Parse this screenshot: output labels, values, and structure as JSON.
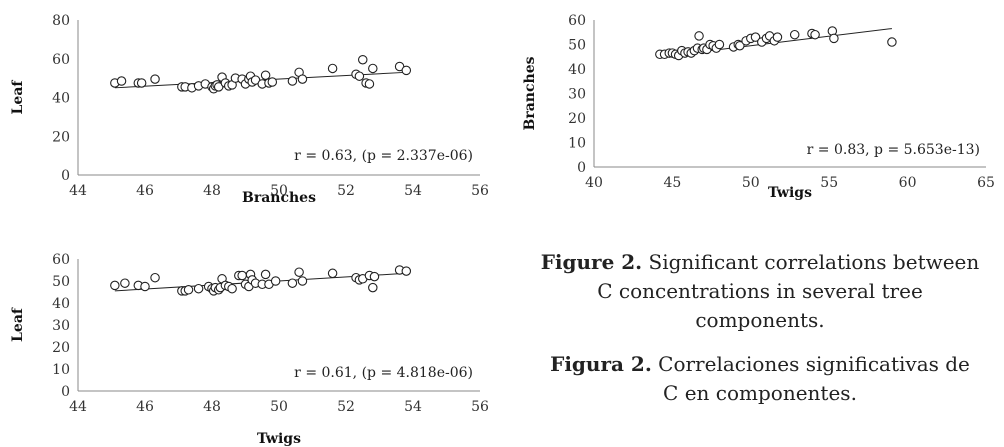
{
  "chart_data": [
    {
      "type": "scatter",
      "xlabel": "Branches",
      "ylabel": "Leaf",
      "xlim": [
        44,
        56
      ],
      "ylim": [
        0,
        80
      ],
      "xticks": [
        44,
        46,
        48,
        50,
        52,
        54,
        56
      ],
      "yticks": [
        0,
        20,
        40,
        60,
        80
      ],
      "annotation": "r = 0.63, (p = 2.337e-06)",
      "trend_line": true,
      "trend": {
        "x": [
          45.1,
          53.8
        ],
        "y": [
          45.0,
          53.0
        ]
      },
      "points": [
        [
          45.1,
          47.5
        ],
        [
          45.3,
          48.5
        ],
        [
          45.8,
          47.5
        ],
        [
          45.9,
          47.5
        ],
        [
          46.3,
          49.5
        ],
        [
          47.1,
          45.5
        ],
        [
          47.2,
          45.5
        ],
        [
          47.4,
          45.0
        ],
        [
          47.6,
          46.0
        ],
        [
          47.8,
          47.0
        ],
        [
          48.0,
          45.5
        ],
        [
          48.05,
          44.5
        ],
        [
          48.1,
          46.0
        ],
        [
          48.15,
          46.5
        ],
        [
          48.2,
          45.5
        ],
        [
          48.3,
          50.5
        ],
        [
          48.4,
          47.5
        ],
        [
          48.5,
          46.0
        ],
        [
          48.6,
          46.5
        ],
        [
          48.7,
          50.0
        ],
        [
          48.9,
          49.5
        ],
        [
          49.0,
          47.0
        ],
        [
          49.1,
          49.5
        ],
        [
          49.15,
          51.0
        ],
        [
          49.2,
          48.0
        ],
        [
          49.3,
          49.0
        ],
        [
          49.5,
          47.0
        ],
        [
          49.6,
          51.5
        ],
        [
          49.7,
          47.5
        ],
        [
          49.8,
          48.0
        ],
        [
          50.4,
          48.5
        ],
        [
          50.6,
          53.0
        ],
        [
          50.7,
          49.5
        ],
        [
          51.6,
          55.0
        ],
        [
          52.3,
          52.0
        ],
        [
          52.4,
          51.0
        ],
        [
          52.5,
          59.5
        ],
        [
          52.6,
          47.5
        ],
        [
          52.7,
          47.0
        ],
        [
          52.8,
          55.0
        ],
        [
          53.6,
          56.0
        ],
        [
          53.8,
          54.0
        ]
      ]
    },
    {
      "type": "scatter",
      "xlabel": "Twigs",
      "ylabel": "Branches",
      "xlim": [
        40,
        65
      ],
      "ylim": [
        0,
        60
      ],
      "xticks": [
        40,
        45,
        50,
        55,
        60,
        65
      ],
      "yticks": [
        0,
        10,
        20,
        30,
        40,
        50,
        60
      ],
      "annotation": "r = 0.83, p = 5.653e-13)",
      "trend_line": true,
      "trend": {
        "x": [
          44.2,
          59.0
        ],
        "y": [
          45.0,
          56.5
        ]
      },
      "points": [
        [
          44.2,
          46.0
        ],
        [
          44.5,
          46.0
        ],
        [
          44.8,
          46.5
        ],
        [
          45.0,
          46.5
        ],
        [
          45.2,
          46.0
        ],
        [
          45.4,
          45.5
        ],
        [
          45.6,
          47.5
        ],
        [
          45.8,
          46.5
        ],
        [
          46.0,
          47.0
        ],
        [
          46.2,
          46.5
        ],
        [
          46.4,
          47.5
        ],
        [
          46.6,
          48.5
        ],
        [
          46.7,
          53.5
        ],
        [
          46.9,
          48.0
        ],
        [
          47.0,
          48.5
        ],
        [
          47.2,
          48.0
        ],
        [
          47.4,
          50.0
        ],
        [
          47.6,
          49.5
        ],
        [
          47.8,
          48.5
        ],
        [
          48.0,
          50.0
        ],
        [
          48.9,
          49.0
        ],
        [
          49.2,
          50.0
        ],
        [
          49.3,
          49.5
        ],
        [
          49.7,
          51.5
        ],
        [
          50.0,
          52.5
        ],
        [
          50.3,
          53.0
        ],
        [
          50.7,
          51.0
        ],
        [
          51.0,
          52.5
        ],
        [
          51.2,
          53.5
        ],
        [
          51.5,
          51.5
        ],
        [
          51.7,
          53.0
        ],
        [
          52.8,
          54.0
        ],
        [
          53.9,
          54.5
        ],
        [
          54.1,
          54.0
        ],
        [
          55.2,
          55.5
        ],
        [
          55.3,
          52.5
        ],
        [
          59.0,
          51.0
        ]
      ]
    },
    {
      "type": "scatter",
      "xlabel": "Twigs",
      "ylabel": "Leaf",
      "xlim": [
        44,
        56
      ],
      "ylim": [
        0,
        60
      ],
      "xticks": [
        44,
        46,
        48,
        50,
        52,
        54,
        56
      ],
      "yticks": [
        0,
        10,
        20,
        30,
        40,
        50,
        60
      ],
      "annotation": "r = 0.61, (p = 4.818e-06)",
      "trend_line": true,
      "trend": {
        "x": [
          45.1,
          53.8
        ],
        "y": [
          45.5,
          53.5
        ]
      },
      "points": [
        [
          45.1,
          48.0
        ],
        [
          45.4,
          49.0
        ],
        [
          45.8,
          48.0
        ],
        [
          46.0,
          47.5
        ],
        [
          46.3,
          51.5
        ],
        [
          47.1,
          45.5
        ],
        [
          47.2,
          45.5
        ],
        [
          47.3,
          46.0
        ],
        [
          47.6,
          46.5
        ],
        [
          47.9,
          47.5
        ],
        [
          48.0,
          46.5
        ],
        [
          48.05,
          45.5
        ],
        [
          48.1,
          47.0
        ],
        [
          48.2,
          46.0
        ],
        [
          48.25,
          47.0
        ],
        [
          48.3,
          51.0
        ],
        [
          48.4,
          48.0
        ],
        [
          48.5,
          47.5
        ],
        [
          48.6,
          46.5
        ],
        [
          48.8,
          52.5
        ],
        [
          48.9,
          52.5
        ],
        [
          49.0,
          48.5
        ],
        [
          49.1,
          47.5
        ],
        [
          49.15,
          53.0
        ],
        [
          49.2,
          50.5
        ],
        [
          49.3,
          49.0
        ],
        [
          49.5,
          48.5
        ],
        [
          49.6,
          53.0
        ],
        [
          49.7,
          48.5
        ],
        [
          49.9,
          50.0
        ],
        [
          50.4,
          49.0
        ],
        [
          50.6,
          54.0
        ],
        [
          50.7,
          50.0
        ],
        [
          51.6,
          53.5
        ],
        [
          52.3,
          51.5
        ],
        [
          52.4,
          50.5
        ],
        [
          52.5,
          51.0
        ],
        [
          52.7,
          52.5
        ],
        [
          52.8,
          47.0
        ],
        [
          52.85,
          52.0
        ],
        [
          53.6,
          55.0
        ],
        [
          53.8,
          54.5
        ]
      ]
    }
  ],
  "caption_en": {
    "label": "Figure 2.",
    "text": " Significant correlations between C concentrations in several tree components."
  },
  "caption_es": {
    "label": "Figura 2.",
    "text": " Correlaciones significativas de C en componentes."
  }
}
